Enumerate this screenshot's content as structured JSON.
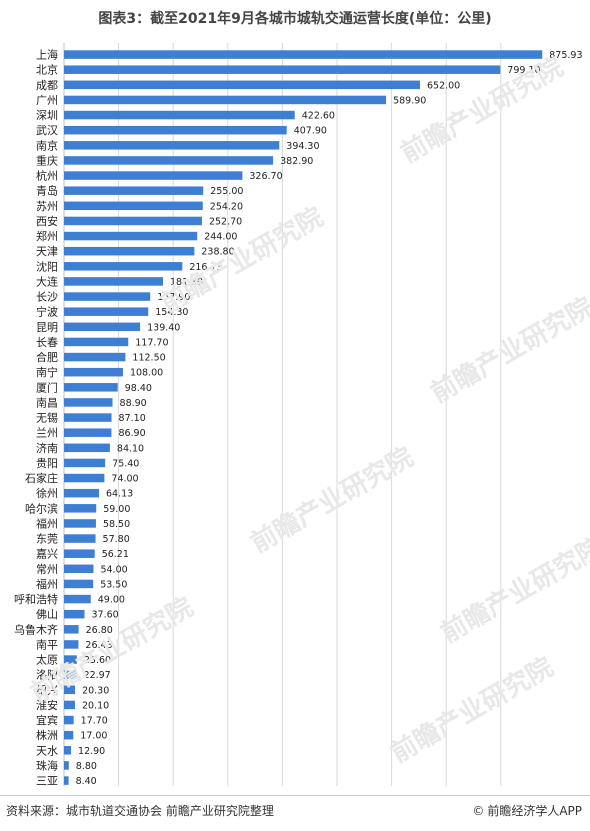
{
  "title": "图表3：截至2021年9月各城市城轨交通运营长度(单位：公里)",
  "footer": {
    "source": "资料来源：城市轨道交通协会 前瞻产业研究院整理",
    "brand_icon": "©",
    "brand": "前瞻经济学人APP"
  },
  "watermark": "前瞻产业研究院",
  "colors": {
    "bar": "#3f7fd3",
    "grid": "#d9d9d9"
  },
  "chart_data": {
    "type": "bar",
    "orientation": "horizontal",
    "title": "图表3：截至2021年9月各城市城轨交通运营长度(单位：公里)",
    "categories": [
      "上海",
      "北京",
      "成都",
      "广州",
      "深圳",
      "武汉",
      "南京",
      "重庆",
      "杭州",
      "青岛",
      "苏州",
      "西安",
      "郑州",
      "天津",
      "沈阳",
      "大连",
      "长沙",
      "宁波",
      "昆明",
      "长春",
      "合肥",
      "南宁",
      "厦门",
      "南昌",
      "无锡",
      "兰州",
      "济南",
      "贵阳",
      "石家庄",
      "徐州",
      "哈尔滨",
      "福州",
      "东莞",
      "嘉兴",
      "常州",
      "福州",
      "呼和浩特",
      "佛山",
      "乌鲁木齐",
      "南平",
      "太原",
      "洛阳",
      "绍兴",
      "淮安",
      "宜宾",
      "株洲",
      "天水",
      "珠海",
      "三亚"
    ],
    "values": [
      875.93,
      799.1,
      652.0,
      589.9,
      422.6,
      407.9,
      394.3,
      382.9,
      326.7,
      255.0,
      254.2,
      252.7,
      244.0,
      238.8,
      216.73,
      181.3,
      157.9,
      154.3,
      139.4,
      117.7,
      112.5,
      108.0,
      98.4,
      88.9,
      87.1,
      86.9,
      84.1,
      75.4,
      74.0,
      64.13,
      59.0,
      58.5,
      57.8,
      56.21,
      54.0,
      53.5,
      49.0,
      37.6,
      26.8,
      26.43,
      23.6,
      22.97,
      20.3,
      20.1,
      17.7,
      17.0,
      12.9,
      8.8,
      8.4
    ],
    "value_labels": [
      "875.93",
      "799.10",
      "652.00",
      "589.90",
      "422.60",
      "407.90",
      "394.30",
      "382.90",
      "326.70",
      "255.00",
      "254.20",
      "252.70",
      "244.00",
      "238.80",
      "216.73",
      "181.30",
      "157.90",
      "154.30",
      "139.40",
      "117.70",
      "112.50",
      "108.00",
      "98.40",
      "88.90",
      "87.10",
      "86.90",
      "84.10",
      "75.40",
      "74.00",
      "64.13",
      "59.00",
      "58.50",
      "57.80",
      "56.21",
      "54.00",
      "53.50",
      "49.00",
      "37.60",
      "26.80",
      "26.43",
      "23.60",
      "22.97",
      "20.30",
      "20.10",
      "17.70",
      "17.00",
      "12.90",
      "8.80",
      "8.40"
    ],
    "xlim": [
      0,
      1000
    ],
    "grid": true
  }
}
